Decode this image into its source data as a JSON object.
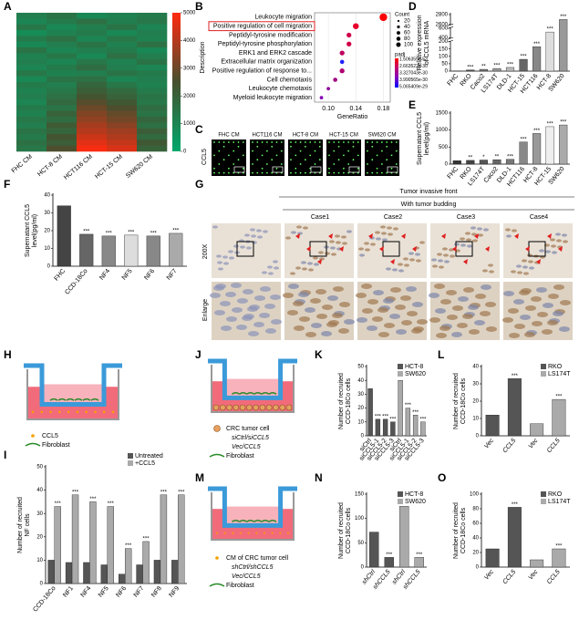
{
  "chart_data": [
    {
      "label": "A",
      "type": "heatmap",
      "columns": [
        "FHC CM",
        "HCT-8 CM",
        "HCT116 CM",
        "HCT-15 CM",
        "SW620 CM"
      ],
      "values": [
        [
          1200,
          1500,
          900,
          1100,
          1300
        ],
        [
          1000,
          1300,
          1600,
          1200,
          1400
        ],
        [
          1400,
          900,
          1200,
          1500,
          1000
        ],
        [
          800,
          1100,
          1300,
          900,
          1200
        ],
        [
          1300,
          1600,
          1000,
          1400,
          1100
        ],
        [
          900,
          1200,
          1500,
          1100,
          1600
        ],
        [
          1500,
          1000,
          1200,
          1300,
          900
        ],
        [
          1100,
          1400,
          900,
          1600,
          1200
        ],
        [
          1200,
          1000,
          1400,
          1100,
          1500
        ],
        [
          1000,
          1300,
          1700,
          1200,
          1000
        ],
        [
          1400,
          1100,
          1200,
          1500,
          1300
        ],
        [
          900,
          1500,
          1600,
          1000,
          1200
        ],
        [
          1300,
          1200,
          1900,
          1400,
          1100
        ],
        [
          1100,
          1400,
          2100,
          1800,
          1300
        ],
        [
          1200,
          1600,
          2400,
          2000,
          1500
        ],
        [
          1000,
          1800,
          2700,
          2300,
          1400
        ],
        [
          1300,
          1500,
          3000,
          2600,
          1700
        ],
        [
          1100,
          2000,
          3300,
          2900,
          1500
        ],
        [
          1400,
          1700,
          3500,
          3100,
          1900
        ],
        [
          1200,
          2200,
          3800,
          3400,
          1600
        ],
        [
          1500,
          1900,
          4000,
          3700,
          2100
        ],
        [
          1300,
          2400,
          4300,
          3900,
          1800
        ],
        [
          1600,
          2100,
          4600,
          4200,
          2300
        ],
        [
          1400,
          2600,
          4900,
          4500,
          2000
        ]
      ],
      "clim": [
        0,
        5000
      ],
      "colorbar_ticks": [
        0,
        1000,
        2000,
        3000,
        4000,
        5000
      ],
      "colors": [
        "#00a86b",
        "#46502e",
        "#ff2a10"
      ]
    },
    {
      "label": "B",
      "type": "dot",
      "ylabel": "Description",
      "xlabel": "GeneRatio",
      "categories": [
        "Leukocyte migration",
        "Positive regulation of cell migration",
        "Peptidyl-tyrosine modification",
        "Peptidyl-tyrosine phosphorylation",
        "ERK1 and ERK2 cascade",
        "Extracellular matrix organization",
        "Positive regulation of response to...",
        "Cell chemotaxis",
        "Leukocyte chemotaxis",
        "Myeloid leukocyte migration"
      ],
      "values": [
        0.18,
        0.14,
        0.13,
        0.13,
        0.12,
        0.12,
        0.12,
        0.11,
        0.1,
        0.09
      ],
      "sizes": [
        100,
        60,
        40,
        40,
        40,
        30,
        40,
        30,
        20,
        20
      ],
      "colors": [
        "#ff0000",
        "#e8002a",
        "#d0004a",
        "#d0004a",
        "#c00060",
        "#2020ff",
        "#b00070",
        "#a00080",
        "#9000a0",
        "#8000b0"
      ],
      "xlim": [
        0.08,
        0.19
      ],
      "xticks": [
        {
          "value": 0.1,
          "label": "0.10"
        },
        {
          "value": 0.14,
          "label": "0.14"
        },
        {
          "value": 0.18,
          "label": "0.18"
        }
      ],
      "size_legend": {
        "title": "Count",
        "values": [
          20,
          40,
          60,
          80,
          100
        ]
      },
      "color_legend": {
        "title": "padj",
        "labels": [
          "1.506355e-53",
          "2.663522e-30",
          "3.327043e-30",
          "3.990565e-30",
          "5.065409e-29"
        ],
        "colors": [
          "#ff0000",
          "#c00070",
          "#8000c0",
          "#0000ff"
        ]
      }
    },
    {
      "label": "D",
      "type": "bar",
      "ylabel": [
        "Relative expression",
        "of CCL5 mRNA"
      ],
      "categories": [
        "FHC",
        "RKO",
        "Caco2",
        "LS174T",
        "DLD-1",
        "HCT-15",
        "HCT116",
        "HCT-8",
        "SW620"
      ],
      "values": [
        1,
        8,
        12,
        18,
        25,
        80,
        165,
        520,
        2700
      ],
      "colors": [
        "#333333",
        "#555555",
        "#777777",
        "#999999",
        "#bbbbbb",
        "#666666",
        "#888888",
        "#dddddd",
        "#999999"
      ],
      "annotations": [
        null,
        "***",
        "**",
        "***",
        "***",
        "***",
        "***",
        "***",
        "***"
      ],
      "ysegments": [
        [
          0,
          200
        ],
        [
          400,
          600
        ],
        [
          2600,
          2800
        ]
      ],
      "yticks": [
        0,
        50,
        100,
        150,
        200,
        400,
        600,
        2600,
        2800
      ]
    },
    {
      "label": "E",
      "type": "bar",
      "ylabel": [
        "Supernatant CCL5",
        "level(pg/ml)"
      ],
      "categories": [
        "FHC",
        "RKO",
        "LS174T",
        "Caco2",
        "DLD-1",
        "HCT116",
        "HCT-8",
        "HCT-15",
        "SW620"
      ],
      "values": [
        100,
        110,
        120,
        130,
        140,
        650,
        900,
        1100,
        1150
      ],
      "colors": [
        "#333333",
        "#444444",
        "#555555",
        "#666666",
        "#777777",
        "#888888",
        "#999999",
        "#eeeeee",
        "#aaaaaa"
      ],
      "annotations": [
        null,
        "**",
        "*",
        "**",
        "***",
        "***",
        "***",
        "***",
        "***"
      ],
      "ylim": [
        0,
        1500
      ],
      "yticks": [
        0,
        500,
        1000,
        1500
      ]
    },
    {
      "label": "F",
      "type": "bar",
      "ylabel": [
        "Supernatant CCL5",
        "level(pg/ml)"
      ],
      "categories": [
        "FHC",
        "CCD-18Co",
        "NF4",
        "NF5",
        "NF6",
        "NF7"
      ],
      "values": [
        34,
        18,
        17,
        17.5,
        17,
        18.5
      ],
      "colors": [
        "#444444",
        "#666666",
        "#888888",
        "#dddddd",
        "#888888",
        "#aaaaaa"
      ],
      "annotations": [
        null,
        "***",
        "***",
        "***",
        "***",
        "***"
      ],
      "ylim": [
        0,
        40
      ],
      "yticks": [
        0,
        10,
        20,
        30,
        40
      ]
    },
    {
      "label": "I",
      "type": "grouped_bar",
      "ylabel": [
        "Number of recruited",
        "NF cells"
      ],
      "categories": [
        "CCD-18Co",
        "NF1",
        "NF4",
        "NF5",
        "NF6",
        "NF7",
        "NF8",
        "NF9"
      ],
      "series": [
        {
          "name": "Untreated",
          "color": "#555555",
          "values": [
            10,
            9,
            9,
            8,
            4,
            8,
            10,
            10
          ],
          "annotations": [
            null,
            null,
            null,
            null,
            null,
            null,
            null,
            null
          ]
        },
        {
          "name": "+CCL5",
          "color": "#aaaaaa",
          "values": [
            33,
            38,
            35,
            33,
            15,
            18,
            38,
            38
          ],
          "annotations": [
            "***",
            "***",
            "***",
            "***",
            "***",
            "***",
            "***",
            "***"
          ]
        }
      ],
      "ylim": [
        0,
        50
      ],
      "yticks": [
        0,
        10,
        20,
        30,
        40,
        50
      ]
    },
    {
      "label": "K",
      "type": "bar",
      "ylabel": [
        "Number of recruited",
        "CCD-18Co cells"
      ],
      "categories": [
        "siCtrl",
        "siCCL5-1",
        "siCCL5-2",
        "siCCL5-3",
        "siCtrl",
        "siCCL5-1",
        "siCCL5-2",
        "siCCL5-3"
      ],
      "series": [
        {
          "name": "HCT-8",
          "color": "#555555",
          "values": [
            34,
            12,
            12,
            10,
            null,
            null,
            null,
            null
          ],
          "annotations": [
            null,
            "***",
            "***",
            "***",
            null,
            null,
            null,
            null
          ]
        },
        {
          "name": "SW620",
          "color": "#aaaaaa",
          "values": [
            null,
            null,
            null,
            null,
            40,
            20,
            15,
            10
          ],
          "annotations": [
            null,
            null,
            null,
            null,
            null,
            "***",
            "***",
            "***"
          ]
        }
      ],
      "ylim": [
        0,
        50
      ],
      "yticks": [
        0,
        10,
        20,
        30,
        40,
        50
      ]
    },
    {
      "label": "L",
      "type": "bar",
      "ylabel": [
        "Number of recruited",
        "CCD-18Co cells"
      ],
      "italic_categories": true,
      "categories": [
        "Vec",
        "CCL5",
        "Vec",
        "CCL5"
      ],
      "series": [
        {
          "name": "RKO",
          "color": "#555555",
          "values": [
            12,
            33,
            null,
            null
          ],
          "annotations": [
            null,
            "***",
            null,
            null
          ]
        },
        {
          "name": "LS174T",
          "color": "#aaaaaa",
          "values": [
            null,
            null,
            7,
            21
          ],
          "annotations": [
            null,
            null,
            null,
            "***"
          ]
        }
      ],
      "ylim": [
        0,
        40
      ],
      "yticks": [
        0,
        10,
        20,
        30,
        40
      ]
    },
    {
      "label": "N",
      "type": "bar",
      "ylabel": [
        "Number of recruited",
        "CCD-18Co cells"
      ],
      "italic_categories": true,
      "categories": [
        "shCtrl",
        "shCCL5",
        "shCtrl",
        "shCCL5"
      ],
      "series": [
        {
          "name": "HCT-8",
          "color": "#555555",
          "values": [
            72,
            20,
            null,
            null
          ],
          "annotations": [
            null,
            "***",
            null,
            null
          ]
        },
        {
          "name": "SW620",
          "color": "#aaaaaa",
          "values": [
            null,
            null,
            125,
            20
          ],
          "annotations": [
            null,
            null,
            null,
            "***"
          ]
        }
      ],
      "ylim": [
        0,
        150
      ],
      "yticks": [
        0,
        50,
        100,
        150
      ]
    },
    {
      "label": "O",
      "type": "bar",
      "ylabel": [
        "Number of recruited",
        "CCD-18Co cells"
      ],
      "italic_categories": true,
      "categories": [
        "Vec",
        "CCL5",
        "Vec",
        "CCL5"
      ],
      "series": [
        {
          "name": "RKO",
          "color": "#555555",
          "values": [
            25,
            82,
            null,
            null
          ],
          "annotations": [
            null,
            "***",
            null,
            null
          ]
        },
        {
          "name": "LS174T",
          "color": "#aaaaaa",
          "values": [
            null,
            null,
            10,
            25
          ],
          "annotations": [
            null,
            null,
            null,
            "***"
          ]
        }
      ],
      "ylim": [
        0,
        100
      ],
      "yticks": [
        0,
        20,
        40,
        60,
        80,
        100
      ]
    }
  ],
  "figures": {
    "C": {
      "label": "C",
      "images": [
        "FHC CM",
        "HCT116 CM",
        "HCT-8 CM",
        "HCT-15 CM",
        "SW620 CM"
      ],
      "row_label": "CCL5"
    },
    "G": {
      "label": "G",
      "header": "Tumor invasive front",
      "subheader": "With tumor budding",
      "cases": [
        "Case1",
        "Case2",
        "Case3",
        "Case4"
      ],
      "rows": [
        "200X",
        "Enlarge"
      ]
    },
    "H": {
      "label": "H",
      "legend": [
        "CCL5",
        "Fibroblast"
      ]
    },
    "J": {
      "label": "J",
      "legend": [
        "CRC tumor cell",
        "siCtrl/siCCL5",
        "Vec/CCL5",
        "Fibroblast"
      ]
    },
    "M": {
      "label": "M",
      "legend": [
        "CM of CRC tumor cell",
        "shCtrl/shCCL5",
        "Vec/CCL5",
        "Fibroblast"
      ]
    }
  }
}
